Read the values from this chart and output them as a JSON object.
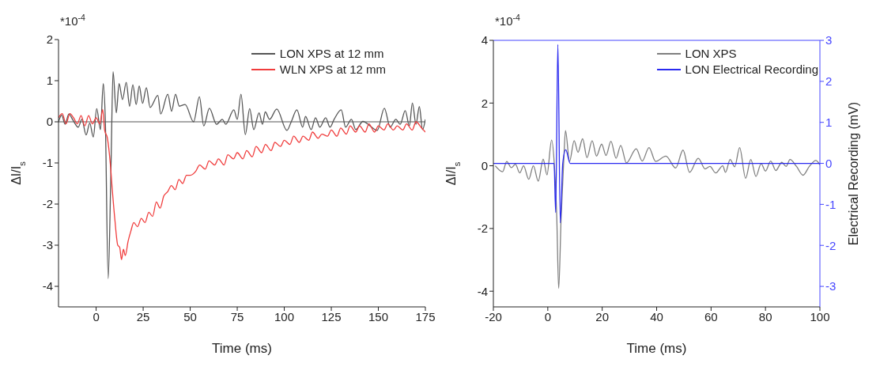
{
  "chart_data": [
    {
      "type": "line",
      "xlabel": "Time (ms)",
      "ylabel": "ΔI/I$_{s}$",
      "annotations": [
        "*10$^{-4}$"
      ],
      "xlim": [
        -20,
        175
      ],
      "xticks": [
        0,
        25,
        50,
        75,
        100,
        125,
        150,
        175
      ],
      "ylim": [
        -4.5,
        2
      ],
      "yticks": [
        -4,
        -3,
        -2,
        -1,
        0,
        1,
        2
      ],
      "legend": "top right",
      "ref_lines": [
        {
          "axis": "y",
          "value": 0,
          "color": "#555555"
        }
      ],
      "series": [
        {
          "name": "LON XPS at 12 mm",
          "color": "#555555",
          "x": [
            -20,
            -18.3,
            -16.5,
            -14.5,
            -12.2,
            -9.5,
            -7.6,
            -5.3,
            -3.4,
            -1.5,
            0.3,
            2.3,
            3.8,
            4.9,
            6.4,
            7.9,
            9,
            10.7,
            12.2,
            14,
            16,
            17.8,
            19.5,
            21.3,
            22.9,
            24.7,
            26.7,
            28.7,
            32.8,
            34.3,
            38.1,
            40.1,
            42.2,
            44.2,
            47.3,
            51.8,
            54.9,
            57.2,
            60.2,
            64,
            67.1,
            68.9,
            73.2,
            75,
            77,
            79.3,
            81.6,
            83.8,
            86.6,
            88.4,
            89.9,
            92.2,
            96,
            101.4,
            103.7,
            106.7,
            109.8,
            111.3,
            114.3,
            116.6,
            118.9,
            122,
            124.3,
            126.5,
            130.3,
            132.6,
            135.7,
            138,
            141.8,
            145.6,
            149.4,
            153.2,
            156.3,
            159.3,
            161.6,
            164.3,
            166.5,
            168.1,
            170,
            171.8,
            173.5,
            175
          ],
          "values": [
            0,
            0.16,
            -0.06,
            0.19,
            0.03,
            -0.13,
            0.06,
            -0.32,
            -0.03,
            -0.37,
            0.32,
            -0.19,
            0.93,
            0,
            -3.81,
            -1.09,
            1.22,
            0.22,
            0.93,
            0.54,
            0.96,
            0.38,
            0.9,
            0.42,
            0.87,
            0.45,
            0.83,
            0.35,
            0.64,
            0.19,
            0.67,
            0.26,
            0.67,
            0.38,
            0.42,
            0,
            0.61,
            -0.1,
            0.33,
            -0.06,
            0.06,
            -0.06,
            0.29,
            0.06,
            0.67,
            -0.31,
            0.32,
            -0.19,
            0.22,
            -0.06,
            0.24,
            0.06,
            0.31,
            -0.21,
            0,
            0.29,
            -0.13,
            0.13,
            -0.19,
            0.1,
            -0.13,
            0.1,
            -0.13,
            0.06,
            0.29,
            -0.13,
            0.06,
            -0.19,
            0.01,
            -0.1,
            -0.21,
            0.33,
            -0.13,
            0.06,
            -0.06,
            0.27,
            -0.1,
            0.46,
            -0.06,
            0.37,
            -0.19,
            0.06
          ]
        },
        {
          "name": "WLN XPS at 12 mm",
          "color": "#f03c3c",
          "x": [
            -20,
            -18,
            -16,
            -14,
            -12,
            -10,
            -8,
            -6,
            -4,
            -2,
            0,
            2,
            3.5,
            4.5,
            6,
            7.5,
            8.5,
            10,
            11.5,
            12.5,
            13.5,
            14.5,
            15.5,
            17,
            18.5,
            20,
            22,
            24,
            26,
            28,
            30,
            32,
            34,
            36,
            38,
            40,
            42,
            44,
            46,
            48,
            50,
            53,
            55,
            58,
            60,
            63,
            65,
            68,
            70,
            73,
            75,
            78,
            80,
            83,
            85,
            88,
            90,
            93,
            95,
            98,
            100,
            103,
            105,
            108,
            110,
            113,
            115,
            118,
            120,
            123,
            125,
            128,
            130,
            133,
            135,
            138,
            140,
            143,
            145,
            148,
            150,
            153,
            155,
            158,
            160,
            163,
            165,
            168,
            170,
            173,
            175
          ],
          "values": [
            0.1,
            0.2,
            -0.05,
            0.2,
            0.1,
            -0.05,
            0.15,
            -0.1,
            0.15,
            -0.05,
            0.1,
            -0.05,
            0.3,
            -0.2,
            -0.4,
            -1,
            -1.6,
            -2.4,
            -3,
            -3.05,
            -3.35,
            -3.1,
            -3.25,
            -2.9,
            -2.65,
            -2.45,
            -2.55,
            -2.35,
            -2.45,
            -2.2,
            -2.3,
            -1.95,
            -2.1,
            -1.8,
            -1.7,
            -1.55,
            -1.65,
            -1.4,
            -1.5,
            -1.3,
            -1.3,
            -1.2,
            -1.05,
            -1.15,
            -0.95,
            -1.05,
            -0.9,
            -1.05,
            -0.8,
            -0.9,
            -0.75,
            -0.9,
            -0.7,
            -0.85,
            -0.6,
            -0.75,
            -0.55,
            -0.7,
            -0.5,
            -0.6,
            -0.45,
            -0.55,
            -0.35,
            -0.5,
            -0.35,
            -0.45,
            -0.25,
            -0.4,
            -0.3,
            -0.35,
            -0.2,
            -0.35,
            -0.15,
            -0.3,
            -0.1,
            -0.25,
            -0.1,
            -0.25,
            -0.05,
            -0.25,
            -0.1,
            -0.2,
            -0.05,
            -0.2,
            -0.1,
            -0.2,
            -0.05,
            -0.2,
            0,
            -0.15,
            -0.25
          ]
        }
      ]
    },
    {
      "type": "line",
      "xlabel": "Time (ms)",
      "ylabel": "ΔI/I$_{s}$",
      "y2label": "Electrical Recording (mV)",
      "annotations": [
        "*10$^{-4}$"
      ],
      "xlim": [
        -20,
        100
      ],
      "xticks": [
        -20,
        0,
        20,
        40,
        60,
        80,
        100
      ],
      "ylim": [
        -4.5,
        4
      ],
      "yticks": [
        -4,
        -2,
        0,
        2,
        4
      ],
      "y2lim": [
        -3.5,
        3
      ],
      "y2ticks": [
        -3,
        -2,
        -1,
        0,
        1,
        2,
        3
      ],
      "legend": "top right",
      "series": [
        {
          "name": "LON XPS",
          "color": "#7f7f7f",
          "x": [
            -19.3,
            -16.6,
            -15.1,
            -13.4,
            -11.9,
            -10.3,
            -8.9,
            -7,
            -5.3,
            -3.5,
            -1.7,
            -0.3,
            1.4,
            2.5,
            3.3,
            4,
            4.9,
            5.9,
            6.5,
            8,
            9.7,
            11.1,
            12.8,
            14.4,
            16.3,
            17.9,
            19.8,
            21.4,
            23.2,
            25.1,
            26.8,
            28.9,
            32.5,
            34.7,
            37.2,
            39.6,
            43.4,
            47,
            49.7,
            52.1,
            55.3,
            57.8,
            59.6,
            61.7,
            64.3,
            65.3,
            67,
            68.7,
            70.5,
            72.7,
            74.6,
            76.5,
            78.4,
            80,
            81.9,
            83.8,
            86,
            87.6,
            89,
            91.4,
            93.8,
            96.1,
            98.5,
            100
          ],
          "values": [
            0,
            -0.19,
            0.14,
            -0.06,
            0.05,
            -0.23,
            0,
            -0.43,
            0,
            -0.49,
            0.21,
            -0.29,
            0.82,
            -0.1,
            -1.65,
            -3.91,
            -1.65,
            0.24,
            1.12,
            0.14,
            0.8,
            0.43,
            0.86,
            0.26,
            0.8,
            0.31,
            0.69,
            0.33,
            0.78,
            0.24,
            0.65,
            0.09,
            0.54,
            0.15,
            0.58,
            0.14,
            0.31,
            -0.07,
            0.5,
            -0.21,
            0.24,
            -0.1,
            -0.02,
            -0.23,
            0,
            -0.21,
            0.2,
            -0.03,
            0.58,
            -0.4,
            0.2,
            -0.34,
            0.07,
            -0.17,
            0.15,
            -0.15,
            0.11,
            -0.02,
            0.2,
            -0.02,
            -0.3,
            -0.02,
            0.17,
            0.03
          ]
        },
        {
          "name": "LON Electrical Recording",
          "color": "#2a2af0",
          "axis": "y2",
          "x": [
            -20,
            2.3,
            2.9,
            3.7,
            4.6,
            5.5,
            6.6,
            8.2,
            100
          ],
          "values": [
            0,
            0,
            -1.2,
            2.9,
            -1.45,
            0,
            0.33,
            0,
            0
          ]
        }
      ]
    }
  ]
}
